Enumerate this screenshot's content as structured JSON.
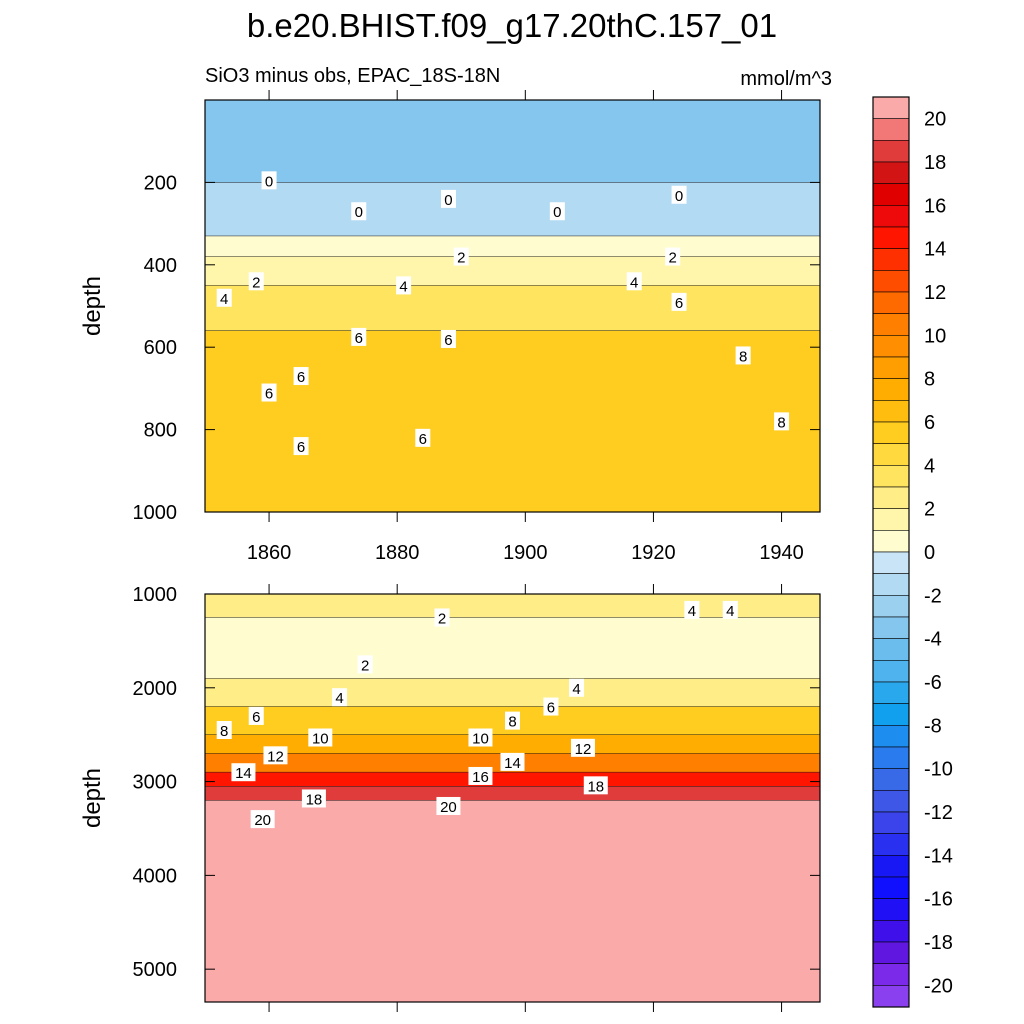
{
  "chart_data": {
    "type": "contour",
    "title": "b.e20.BHIST.f09_g17.20thC.157_01",
    "subtitle": "SiO3 minus obs, EPAC_18S-18N",
    "units": "mmol/m^3",
    "x": {
      "label": "",
      "range": [
        1850,
        1946
      ],
      "ticks": [
        1860,
        1880,
        1900,
        1920,
        1940
      ],
      "tick_labels": [
        "1860",
        "1880",
        "1900",
        "1920",
        "1940"
      ]
    },
    "panels": [
      {
        "name": "upper",
        "ylabel": "depth",
        "ylim": [
          0,
          1000
        ],
        "inverted": true,
        "yticks": [
          200,
          400,
          600,
          800,
          1000
        ],
        "ytick_labels": [
          "200",
          "400",
          "600",
          "800",
          "1000"
        ],
        "show_x_tick_labels": true,
        "fill_bands": [
          {
            "depth_top": 0,
            "depth_bottom": 200,
            "value": -3
          },
          {
            "depth_top": 200,
            "depth_bottom": 330,
            "value": -1
          },
          {
            "depth_top": 330,
            "depth_bottom": 380,
            "value": 0.5
          },
          {
            "depth_top": 380,
            "depth_bottom": 450,
            "value": 1.5
          },
          {
            "depth_top": 450,
            "depth_bottom": 560,
            "value": 3.5
          },
          {
            "depth_top": 560,
            "depth_bottom": 1000,
            "value": 5.5
          }
        ],
        "contour_labels": [
          {
            "text": "0",
            "x": 1860,
            "y": 195
          },
          {
            "text": "0",
            "x": 1874,
            "y": 270
          },
          {
            "text": "0",
            "x": 1888,
            "y": 240
          },
          {
            "text": "0",
            "x": 1905,
            "y": 270
          },
          {
            "text": "0",
            "x": 1924,
            "y": 230
          },
          {
            "text": "2",
            "x": 1858,
            "y": 440
          },
          {
            "text": "2",
            "x": 1890,
            "y": 380
          },
          {
            "text": "2",
            "x": 1923,
            "y": 380
          },
          {
            "text": "4",
            "x": 1853,
            "y": 480
          },
          {
            "text": "4",
            "x": 1881,
            "y": 450
          },
          {
            "text": "4",
            "x": 1917,
            "y": 440
          },
          {
            "text": "6",
            "x": 1924,
            "y": 490
          },
          {
            "text": "6",
            "x": 1874,
            "y": 575
          },
          {
            "text": "6",
            "x": 1888,
            "y": 580
          },
          {
            "text": "6",
            "x": 1860,
            "y": 710
          },
          {
            "text": "6",
            "x": 1865,
            "y": 670
          },
          {
            "text": "6",
            "x": 1865,
            "y": 840
          },
          {
            "text": "6",
            "x": 1884,
            "y": 820
          },
          {
            "text": "8",
            "x": 1934,
            "y": 620
          },
          {
            "text": "8",
            "x": 1940,
            "y": 780
          }
        ]
      },
      {
        "name": "lower",
        "ylabel": "depth",
        "ylim": [
          1000,
          5350
        ],
        "inverted": true,
        "yticks": [
          1000,
          2000,
          3000,
          4000,
          5000
        ],
        "ytick_labels": [
          "1000",
          "2000",
          "3000",
          "4000",
          "5000"
        ],
        "show_x_tick_labels": false,
        "fill_bands": [
          {
            "depth_top": 1000,
            "depth_bottom": 1250,
            "value": 3
          },
          {
            "depth_top": 1250,
            "depth_bottom": 1900,
            "value": 1
          },
          {
            "depth_top": 1900,
            "depth_bottom": 2200,
            "value": 3
          },
          {
            "depth_top": 2200,
            "depth_bottom": 2500,
            "value": 6
          },
          {
            "depth_top": 2500,
            "depth_bottom": 2700,
            "value": 8
          },
          {
            "depth_top": 2700,
            "depth_bottom": 2900,
            "value": 11
          },
          {
            "depth_top": 2900,
            "depth_bottom": 3050,
            "value": 15
          },
          {
            "depth_top": 3050,
            "depth_bottom": 3200,
            "value": 19
          },
          {
            "depth_top": 3200,
            "depth_bottom": 5350,
            "value": 21
          }
        ],
        "contour_labels": [
          {
            "text": "2",
            "x": 1887,
            "y": 1250
          },
          {
            "text": "2",
            "x": 1875,
            "y": 1750
          },
          {
            "text": "4",
            "x": 1926,
            "y": 1170
          },
          {
            "text": "4",
            "x": 1932,
            "y": 1170
          },
          {
            "text": "4",
            "x": 1871,
            "y": 2100
          },
          {
            "text": "4",
            "x": 1908,
            "y": 2000
          },
          {
            "text": "6",
            "x": 1858,
            "y": 2300
          },
          {
            "text": "6",
            "x": 1904,
            "y": 2200
          },
          {
            "text": "8",
            "x": 1853,
            "y": 2450
          },
          {
            "text": "8",
            "x": 1898,
            "y": 2350
          },
          {
            "text": "10",
            "x": 1868,
            "y": 2530
          },
          {
            "text": "10",
            "x": 1893,
            "y": 2530
          },
          {
            "text": "12",
            "x": 1861,
            "y": 2720
          },
          {
            "text": "12",
            "x": 1909,
            "y": 2640
          },
          {
            "text": "14",
            "x": 1856,
            "y": 2900
          },
          {
            "text": "14",
            "x": 1898,
            "y": 2790
          },
          {
            "text": "16",
            "x": 1893,
            "y": 2940
          },
          {
            "text": "18",
            "x": 1867,
            "y": 3180
          },
          {
            "text": "18",
            "x": 1911,
            "y": 3040
          },
          {
            "text": "20",
            "x": 1859,
            "y": 3400
          },
          {
            "text": "20",
            "x": 1888,
            "y": 3260
          }
        ]
      }
    ],
    "colorbar": {
      "min": -21,
      "max": 21,
      "ticks": [
        20,
        18,
        16,
        14,
        12,
        10,
        8,
        6,
        4,
        2,
        0,
        -2,
        -4,
        -6,
        -8,
        -10,
        -12,
        -14,
        -16,
        -18,
        -20
      ],
      "tick_labels": [
        "20",
        "18",
        "16",
        "14",
        "12",
        "10",
        "8",
        "6",
        "4",
        "2",
        "0",
        "-2",
        "-4",
        "-6",
        "-8",
        "-10",
        "-12",
        "-14",
        "-16",
        "-18",
        "-20"
      ],
      "colors": [
        "#fbaaaa",
        "#f27777",
        "#e03c3c",
        "#d21414",
        "#e00000",
        "#ee0a0a",
        "#ff1500",
        "#ff3000",
        "#ff4d00",
        "#ff6a00",
        "#ff8000",
        "#ff8f00",
        "#ff9e00",
        "#ffad00",
        "#ffbd10",
        "#ffcc20",
        "#ffd93d",
        "#ffe460",
        "#ffee88",
        "#fff6ac",
        "#fffdd0",
        "#c8e4f6",
        "#b2daf2",
        "#9bd0ef",
        "#85c6ee",
        "#6bbdee",
        "#4fb3ee",
        "#2aa8ee",
        "#11a0ee",
        "#1d8ef0",
        "#2a7cee",
        "#386ae8",
        "#3f57e6",
        "#3a44ea",
        "#2a30f0",
        "#1818f5",
        "#1010ff",
        "#2010f5",
        "#4010ea",
        "#6018e0",
        "#7a2ae8",
        "#8a40ee"
      ]
    }
  }
}
